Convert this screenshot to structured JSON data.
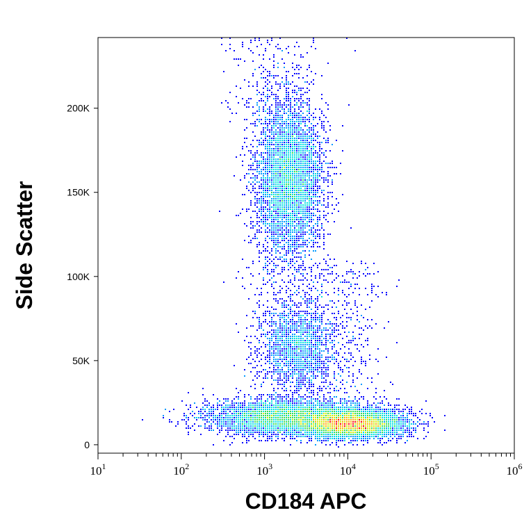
{
  "chart_data": {
    "type": "scatter",
    "plot_style": "flow-cytometry pseudocolor density dot plot",
    "xlabel": "CD184 APC",
    "ylabel": "Side Scatter",
    "x_scale": "log",
    "xlim": [
      10,
      1000000
    ],
    "ylim": [
      -5000,
      242000
    ],
    "x_ticks": [
      {
        "value": 10,
        "base": "10",
        "exp": "1"
      },
      {
        "value": 100,
        "base": "10",
        "exp": "2"
      },
      {
        "value": 1000,
        "base": "10",
        "exp": "3"
      },
      {
        "value": 10000,
        "base": "10",
        "exp": "4"
      },
      {
        "value": 100000,
        "base": "10",
        "exp": "5"
      },
      {
        "value": 1000000,
        "base": "10",
        "exp": "6"
      }
    ],
    "y_ticks": [
      {
        "value": 0,
        "label": "0"
      },
      {
        "value": 50000,
        "label": "50K"
      },
      {
        "value": 100000,
        "label": "100K"
      },
      {
        "value": 150000,
        "label": "150K"
      },
      {
        "value": 200000,
        "label": "200K"
      }
    ],
    "grid": false,
    "legend": "none",
    "density_colormap": [
      "#0000ff",
      "#0099ff",
      "#00e0e0",
      "#33dd55",
      "#ccee00",
      "#ffaa00",
      "#ff0000"
    ],
    "populations": [
      {
        "x_center": 2000,
        "x_spread_log10": 0.2,
        "y_center": 158000,
        "y_spread": 22000,
        "relative_density": "high"
      },
      {
        "x_center": 2500,
        "x_spread_log10": 0.22,
        "y_center": 58000,
        "y_spread": 12000,
        "relative_density": "medium"
      },
      {
        "x_center": 2000,
        "x_spread_log10": 0.5,
        "y_center": 16000,
        "y_spread": 5000,
        "relative_density": "high"
      },
      {
        "x_center": 11000,
        "x_spread_log10": 0.3,
        "y_center": 12000,
        "y_spread": 4000,
        "relative_density": "very high"
      }
    ]
  }
}
